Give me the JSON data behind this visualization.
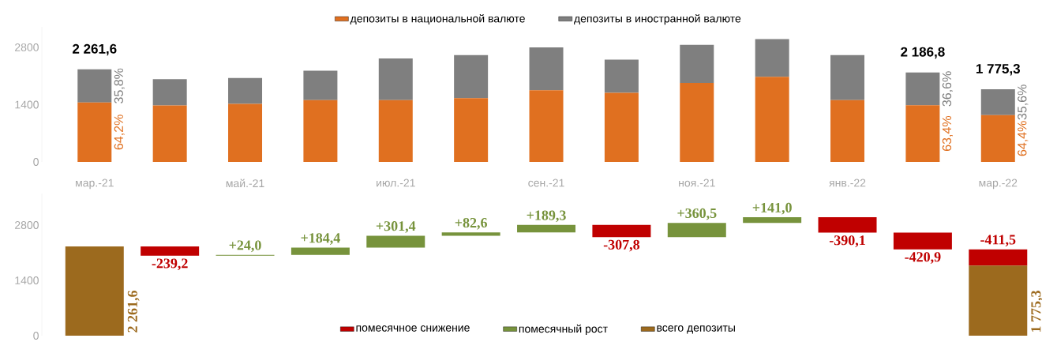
{
  "chart_data": [
    {
      "type": "bar",
      "stacked": true,
      "legend": "top",
      "categories": [
        "мар.-21",
        null,
        "май.-21",
        null,
        "июл.-21",
        null,
        "сен.-21",
        null,
        "ноя.-21",
        null,
        "янв.-22",
        null,
        "мар.-22"
      ],
      "series": [
        {
          "name": "депозиты в национальной валюте",
          "color": "#e07020",
          "values": [
            1451.9,
            1380,
            1420,
            1510,
            1510,
            1560,
            1750,
            1690,
            1930,
            2080,
            1510,
            1386.4,
            1143.3
          ]
        },
        {
          "name": "депозиты в иностранной валюте",
          "color": "#7f7f7f",
          "values": [
            809.7,
            640,
            630,
            720,
            1020,
            1050,
            1050,
            810,
            930,
            920,
            1100,
            800.4,
            632.0
          ]
        }
      ],
      "annotations": [
        "64,2%",
        "35,8%",
        "63,4%",
        "36,6%",
        "64,4%",
        "35,6%"
      ],
      "totals": [
        "2 261,6",
        null,
        null,
        null,
        null,
        null,
        null,
        null,
        null,
        null,
        null,
        "2 186,8",
        "1 775,3"
      ],
      "ylim": [
        0,
        3300
      ],
      "yticks": [
        0,
        1400,
        2800
      ]
    },
    {
      "type": "bar",
      "legend": "bottom",
      "tick_labels": "y",
      "categories": [
        null,
        null,
        null,
        null,
        null,
        null,
        null,
        null,
        null,
        null,
        null,
        null,
        null
      ],
      "series": [
        {
          "name": "помесячное снижение",
          "color": "#c00000",
          "values": [
            null,
            -239.2,
            null,
            null,
            null,
            null,
            null,
            -307.8,
            null,
            null,
            -390.1,
            -420.9,
            -411.5
          ],
          "base": [
            null,
            2261.6,
            null,
            null,
            null,
            null,
            null,
            2804.1,
            null,
            null,
            2997.8,
            2607.7,
            2186.8
          ],
          "value_labels": [
            null,
            "-239,2",
            null,
            null,
            null,
            null,
            null,
            "-307,8",
            null,
            null,
            "-390,1",
            "-420,9",
            "-411,5"
          ]
        },
        {
          "name": "помесячный рост",
          "color": "#77933c",
          "values": [
            null,
            null,
            24.0,
            184.4,
            301.4,
            82.6,
            189.3,
            null,
            360.5,
            141.0,
            null,
            null,
            null
          ],
          "base": [
            null,
            null,
            2022.4,
            2046.4,
            2230.8,
            2532.2,
            2614.8,
            null,
            2496.3,
            2856.8,
            null,
            null,
            null
          ],
          "value_labels": [
            null,
            null,
            "+24,0",
            "+184,4",
            "+301,4",
            "+82,6",
            "+189,3",
            null,
            "+360,5",
            "+141,0",
            null,
            null,
            null
          ]
        },
        {
          "name": "всего депозиты",
          "color": "#9c6a1e",
          "values": [
            2261.6,
            null,
            null,
            null,
            null,
            null,
            null,
            null,
            null,
            null,
            null,
            null,
            1775.3
          ],
          "base": [
            0,
            null,
            null,
            null,
            null,
            null,
            null,
            null,
            null,
            null,
            null,
            null,
            0
          ],
          "value_labels": [
            "2 261,6",
            null,
            null,
            null,
            null,
            null,
            null,
            null,
            null,
            null,
            null,
            null,
            "1 775,3"
          ]
        }
      ],
      "ylim": [
        0,
        3600
      ],
      "yticks": [
        0,
        1400,
        2800
      ]
    }
  ]
}
